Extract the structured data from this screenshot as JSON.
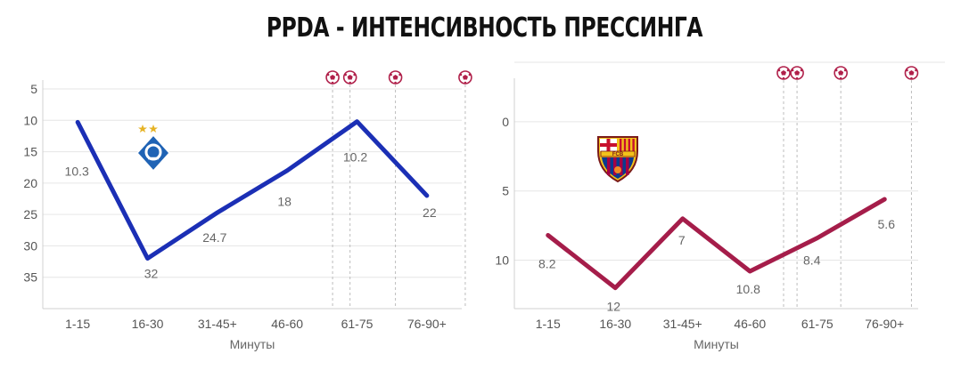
{
  "title": "PPDA - ИНТЕНСИВНОСТЬ ПРЕССИНГА",
  "chart_data": [
    {
      "type": "line",
      "team_logo": "dynamo-kyiv-logo",
      "categories": [
        "1-15",
        "16-30",
        "31-45+",
        "46-60",
        "61-75",
        "76-90+"
      ],
      "values": [
        10.3,
        32,
        24.7,
        18,
        10.2,
        22
      ],
      "value_labels": [
        "10.3",
        "32",
        "24.7",
        "18",
        "10.2",
        "22"
      ],
      "xlabel": "Минуты",
      "ylabel": "",
      "ylim": [
        5,
        40
      ],
      "y_inverted": true,
      "yticks": [
        "5",
        "10",
        "15",
        "20",
        "25",
        "30",
        "35"
      ],
      "color": "#1b2fb5",
      "grid": true,
      "goal_markers": [
        4.15,
        4.4,
        5.05,
        6.05
      ],
      "goal_icon": "soccer-ball-icon"
    },
    {
      "type": "line",
      "team_logo": "fc-barcelona-logo",
      "categories": [
        "1-15",
        "16-30",
        "31-45+",
        "46-60",
        "61-75",
        "76-90+"
      ],
      "values": [
        8.2,
        12,
        7,
        10.8,
        8.4,
        5.6
      ],
      "value_labels": [
        "8.2",
        "12",
        "7",
        "10.8",
        "8.4",
        "5.6"
      ],
      "xlabel": "Минуты",
      "ylabel": "",
      "ylim": [
        -2.5,
        13.5
      ],
      "y_inverted": true,
      "yticks": [
        "0",
        "5",
        "10"
      ],
      "color": "#a51d4a",
      "grid": true,
      "goal_markers": [
        4.0,
        4.2,
        4.85,
        5.9
      ],
      "goal_icon": "soccer-ball-icon"
    }
  ]
}
